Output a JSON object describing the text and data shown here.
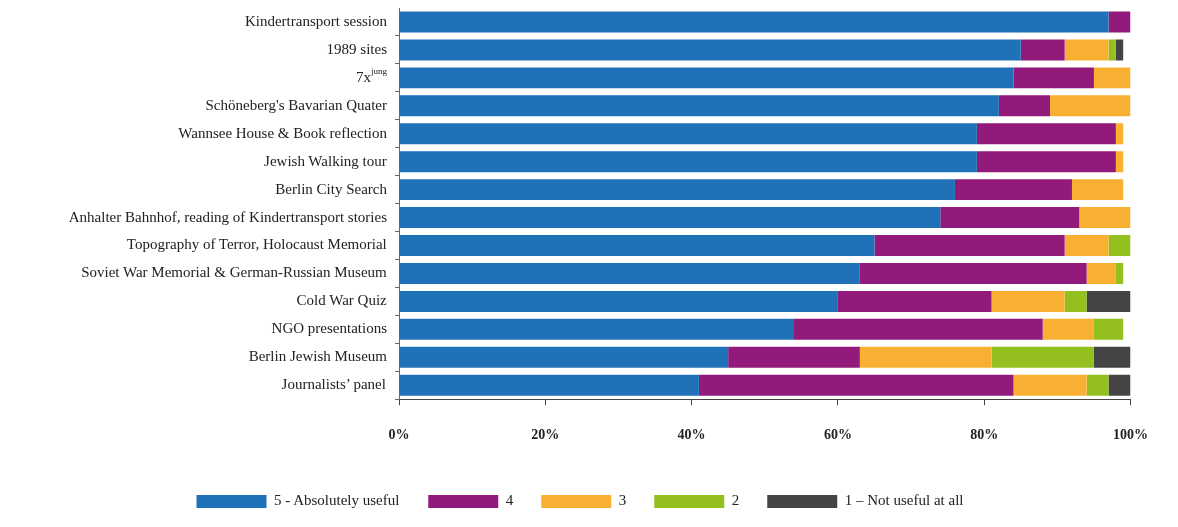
{
  "chart_data": {
    "type": "bar",
    "orientation": "horizontal",
    "stacked": true,
    "categories": [
      "Kindertransport session",
      "1989 sites",
      "7x$^{jung}$",
      "Schöneberg's Bavarian Quater",
      "Wannsee House & Book reflection",
      "Jewish Walking tour",
      "Berlin City Search",
      "Anhalter Bahnhof, reading of Kindertransport stories",
      "Topography of Terror, Holocaust Memorial",
      "Soviet War Memorial & German-Russian Museum",
      "Cold War Quiz",
      "NGO presentations",
      "Berlin Jewish Museum",
      "Journalists’ panel"
    ],
    "series": [
      {
        "name": "5 - Absolutely useful",
        "color": "#1f72b8",
        "values": [
          97,
          85,
          84,
          82,
          79,
          79,
          76,
          74,
          65,
          63,
          60,
          54,
          45,
          41
        ]
      },
      {
        "name": "4",
        "color": "#921a7b",
        "values": [
          3,
          6,
          11,
          7,
          19,
          19,
          16,
          19,
          26,
          31,
          21,
          34,
          18,
          43
        ]
      },
      {
        "name": "3",
        "color": "#f8b033",
        "values": [
          null,
          6,
          5,
          11,
          1,
          1,
          7,
          7,
          6,
          4,
          10,
          7,
          18,
          10
        ]
      },
      {
        "name": "2",
        "color": "#93c01f",
        "values": [
          null,
          1,
          null,
          null,
          null,
          null,
          null,
          null,
          3,
          1,
          3,
          4,
          14,
          3
        ]
      },
      {
        "name": "1 – Not useful at all",
        "color": "#444444",
        "values": [
          null,
          1,
          null,
          null,
          null,
          null,
          null,
          null,
          null,
          null,
          6,
          null,
          5,
          3
        ]
      }
    ],
    "xlim": [
      0,
      100
    ],
    "xticks": [
      {
        "value": 0,
        "label": "0%"
      },
      {
        "value": 20,
        "label": "20%"
      },
      {
        "value": 40,
        "label": "40%"
      },
      {
        "value": 60,
        "label": "60%"
      },
      {
        "value": 80,
        "label": "80%"
      },
      {
        "value": 100,
        "label": "100%"
      }
    ],
    "grid": false,
    "legend": "bottom"
  }
}
